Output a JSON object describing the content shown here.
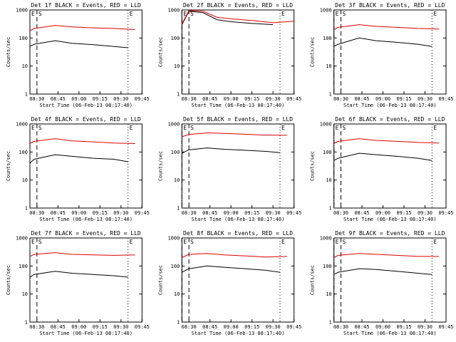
{
  "page": {
    "background": "#ffffff"
  },
  "colors": {
    "events": "#000000",
    "lld": "#e00000",
    "axis": "#000000"
  },
  "shared": {
    "ylabel": "Counts/sec",
    "xlabel_template": "Start Time (06-Feb-13 08:17:40)",
    "x_ticks": [
      "08:30",
      "08:45",
      "09:00",
      "09:15",
      "09:30",
      "09:45"
    ],
    "y_ticks": [
      "1",
      "10",
      "100",
      "1000"
    ],
    "markers": [
      "E",
      "S",
      "E"
    ]
  },
  "chart_data": [
    {
      "type": "line",
      "title": "Det 1f BLACK = Events, RED = LLD",
      "xlabel": "Start Time (06-Feb-13 08:17:40)",
      "ylabel": "Counts/sec",
      "ylim": [
        1,
        1000
      ],
      "log_y": true,
      "series": [
        {
          "name": "Events",
          "values": [
            [
              0,
              50
            ],
            [
              3,
              60
            ],
            [
              18,
              80
            ],
            [
              30,
              65
            ],
            [
              45,
              58
            ],
            [
              60,
              50
            ],
            [
              70,
              45
            ]
          ]
        },
        {
          "name": "LLD",
          "values": [
            [
              0,
              180
            ],
            [
              3,
              220
            ],
            [
              18,
              280
            ],
            [
              30,
              250
            ],
            [
              45,
              230
            ],
            [
              60,
              220
            ],
            [
              75,
              200
            ]
          ]
        }
      ]
    },
    {
      "type": "line",
      "title": "Det 2f BLACK = Events, RED = LLD",
      "xlabel": "Start Time (06-Feb-13 08:17:40)",
      "ylabel": "Counts/sec",
      "ylim": [
        1,
        1000
      ],
      "log_y": true,
      "series": [
        {
          "name": "Events",
          "values": [
            [
              0,
              300
            ],
            [
              5,
              900
            ],
            [
              15,
              800
            ],
            [
              25,
              450
            ],
            [
              35,
              380
            ],
            [
              50,
              330
            ],
            [
              65,
              300
            ]
          ]
        },
        {
          "name": "LLD",
          "values": [
            [
              0,
              320
            ],
            [
              5,
              950
            ],
            [
              15,
              900
            ],
            [
              25,
              550
            ],
            [
              35,
              480
            ],
            [
              50,
              420
            ],
            [
              65,
              350
            ],
            [
              80,
              400
            ]
          ]
        }
      ]
    },
    {
      "type": "line",
      "title": "Det 3f BLACK = Events, RED = LLD",
      "xlabel": "Start Time (06-Feb-13 08:17:40)",
      "ylabel": "Counts/sec",
      "ylim": [
        1,
        1000
      ],
      "log_y": true,
      "series": [
        {
          "name": "Events",
          "values": [
            [
              0,
              50
            ],
            [
              3,
              60
            ],
            [
              18,
              100
            ],
            [
              30,
              80
            ],
            [
              45,
              70
            ],
            [
              60,
              60
            ],
            [
              70,
              50
            ]
          ]
        },
        {
          "name": "LLD",
          "values": [
            [
              0,
              200
            ],
            [
              3,
              240
            ],
            [
              18,
              300
            ],
            [
              30,
              260
            ],
            [
              45,
              240
            ],
            [
              60,
              220
            ],
            [
              75,
              210
            ]
          ]
        }
      ]
    },
    {
      "type": "line",
      "title": "Det 4f BLACK = Events, RED = LLD",
      "xlabel": "Start Time (06-Feb-13 08:17:40)",
      "ylabel": "Counts/sec",
      "ylim": [
        1,
        1000
      ],
      "log_y": true,
      "series": [
        {
          "name": "Events",
          "values": [
            [
              0,
              40
            ],
            [
              3,
              55
            ],
            [
              18,
              80
            ],
            [
              30,
              70
            ],
            [
              45,
              60
            ],
            [
              60,
              55
            ],
            [
              70,
              45
            ]
          ]
        },
        {
          "name": "LLD",
          "values": [
            [
              0,
              200
            ],
            [
              3,
              240
            ],
            [
              18,
              300
            ],
            [
              30,
              250
            ],
            [
              45,
              230
            ],
            [
              60,
              210
            ],
            [
              75,
              200
            ]
          ]
        }
      ]
    },
    {
      "type": "line",
      "title": "Det 5f BLACK = Events, RED = LLD",
      "xlabel": "Start Time (06-Feb-13 08:17:40)",
      "ylabel": "Counts/sec",
      "ylim": [
        1,
        1000
      ],
      "log_y": true,
      "series": [
        {
          "name": "Events",
          "values": [
            [
              0,
              90
            ],
            [
              5,
              120
            ],
            [
              18,
              140
            ],
            [
              30,
              125
            ],
            [
              45,
              115
            ],
            [
              60,
              105
            ],
            [
              70,
              95
            ]
          ]
        },
        {
          "name": "LLD",
          "values": [
            [
              0,
              350
            ],
            [
              5,
              420
            ],
            [
              18,
              480
            ],
            [
              30,
              460
            ],
            [
              45,
              430
            ],
            [
              60,
              400
            ],
            [
              75,
              400
            ]
          ]
        }
      ]
    },
    {
      "type": "line",
      "title": "Det 6f BLACK = Events, RED = LLD",
      "xlabel": "Start Time (06-Feb-13 08:17:40)",
      "ylabel": "Counts/sec",
      "ylim": [
        1,
        1000
      ],
      "log_y": true,
      "series": [
        {
          "name": "Events",
          "values": [
            [
              0,
              50
            ],
            [
              3,
              60
            ],
            [
              18,
              90
            ],
            [
              30,
              80
            ],
            [
              45,
              70
            ],
            [
              60,
              60
            ],
            [
              70,
              50
            ]
          ]
        },
        {
          "name": "LLD",
          "values": [
            [
              0,
              200
            ],
            [
              3,
              240
            ],
            [
              18,
              300
            ],
            [
              30,
              260
            ],
            [
              45,
              240
            ],
            [
              60,
              220
            ],
            [
              75,
              210
            ]
          ]
        }
      ]
    },
    {
      "type": "line",
      "title": "Det 7f BLACK = Events, RED = LLD",
      "xlabel": "Start Time (06-Feb-13 08:17:40)",
      "ylabel": "Counts/sec",
      "ylim": [
        1,
        1000
      ],
      "log_y": true,
      "series": [
        {
          "name": "Events",
          "values": [
            [
              0,
              40
            ],
            [
              3,
              50
            ],
            [
              18,
              65
            ],
            [
              30,
              55
            ],
            [
              45,
              50
            ],
            [
              60,
              45
            ],
            [
              70,
              40
            ]
          ]
        },
        {
          "name": "LLD",
          "values": [
            [
              0,
              220
            ],
            [
              3,
              260
            ],
            [
              18,
              300
            ],
            [
              30,
              260
            ],
            [
              45,
              250
            ],
            [
              60,
              240
            ],
            [
              75,
              250
            ]
          ]
        }
      ]
    },
    {
      "type": "line",
      "title": "Det 8f BLACK = Events, RED = LLD",
      "xlabel": "Start Time (06-Feb-13 08:17:40)",
      "ylabel": "Counts/sec",
      "ylim": [
        1,
        1000
      ],
      "log_y": true,
      "series": [
        {
          "name": "Events",
          "values": [
            [
              0,
              60
            ],
            [
              5,
              80
            ],
            [
              18,
              100
            ],
            [
              30,
              90
            ],
            [
              45,
              80
            ],
            [
              60,
              70
            ],
            [
              70,
              60
            ]
          ]
        },
        {
          "name": "LLD",
          "values": [
            [
              0,
              200
            ],
            [
              5,
              260
            ],
            [
              18,
              280
            ],
            [
              30,
              250
            ],
            [
              45,
              230
            ],
            [
              60,
              210
            ],
            [
              75,
              220
            ]
          ]
        }
      ]
    },
    {
      "type": "line",
      "title": "Det 9f BLACK = Events, RED = LLD",
      "xlabel": "Start Time (06-Feb-13 08:17:40)",
      "ylabel": "Counts/sec",
      "ylim": [
        1,
        1000
      ],
      "log_y": true,
      "series": [
        {
          "name": "Events",
          "values": [
            [
              0,
              50
            ],
            [
              3,
              60
            ],
            [
              18,
              80
            ],
            [
              30,
              75
            ],
            [
              45,
              65
            ],
            [
              60,
              55
            ],
            [
              70,
              50
            ]
          ]
        },
        {
          "name": "LLD",
          "values": [
            [
              0,
              200
            ],
            [
              3,
              240
            ],
            [
              18,
              280
            ],
            [
              30,
              260
            ],
            [
              45,
              240
            ],
            [
              60,
              220
            ],
            [
              75,
              220
            ]
          ]
        }
      ]
    }
  ]
}
